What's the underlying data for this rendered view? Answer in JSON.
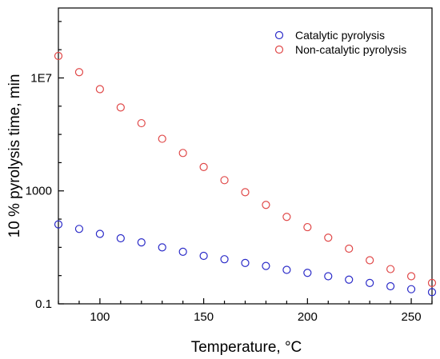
{
  "chart_data": {
    "type": "scatter",
    "title": "",
    "xlabel": "Temperature, °C",
    "ylabel": "10 % pyrolysis time, min",
    "x_scale": "linear",
    "y_scale": "log",
    "xlim": [
      80,
      260
    ],
    "ylim": [
      0.1,
      3000000000
    ],
    "x_ticks": [
      {
        "value": 100,
        "label": "100"
      },
      {
        "value": 150,
        "label": "150"
      },
      {
        "value": 200,
        "label": "200"
      },
      {
        "value": 250,
        "label": "250"
      }
    ],
    "y_ticks": [
      {
        "value": 0.1,
        "label": "0.1"
      },
      {
        "value": 1000,
        "label": "1000"
      },
      {
        "value": 10000000,
        "label": "1E7"
      }
    ],
    "grid": false,
    "legend": "top-right",
    "marker": "open-circle",
    "series": [
      {
        "name": "Catalytic pyrolysis",
        "color": "#2b2bc8",
        "x": [
          80,
          90,
          100,
          110,
          120,
          130,
          140,
          150,
          160,
          170,
          180,
          190,
          200,
          210,
          220,
          230,
          240,
          250,
          260
        ],
        "y": [
          65,
          45,
          30,
          21,
          15,
          10,
          7,
          5,
          3.8,
          2.8,
          2.2,
          1.6,
          1.25,
          0.95,
          0.72,
          0.55,
          0.42,
          0.33,
          0.26
        ]
      },
      {
        "name": "Non-catalytic pyrolysis",
        "color": "#e04848",
        "x": [
          80,
          90,
          100,
          110,
          120,
          130,
          140,
          150,
          160,
          170,
          180,
          190,
          200,
          210,
          220,
          230,
          240,
          250,
          260
        ],
        "y": [
          60000000,
          16000000,
          4000000,
          900000,
          250000,
          70000,
          22000,
          7000,
          2400,
          900,
          320,
          120,
          52,
          22,
          9,
          3.5,
          1.7,
          0.95,
          0.55
        ]
      }
    ]
  }
}
